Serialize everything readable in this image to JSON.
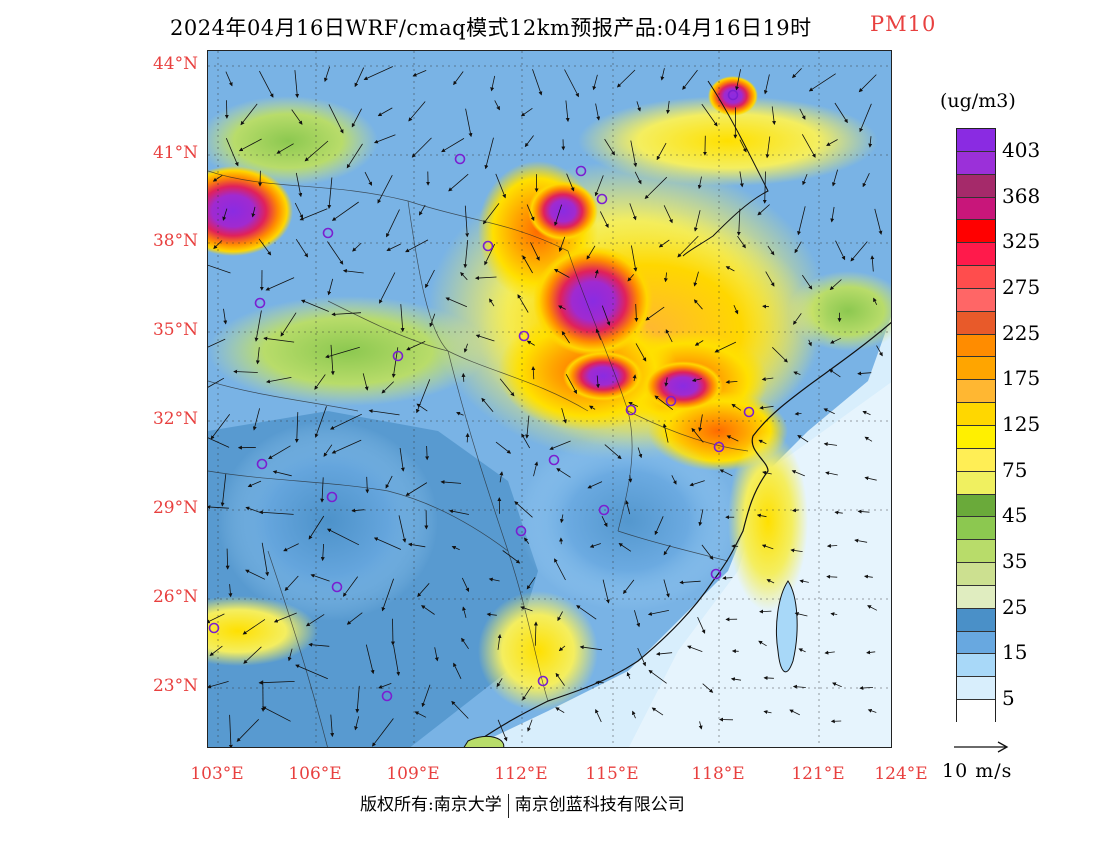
{
  "title": {
    "main": "2024年04月16日WRF/cmaq模式12km预报产品:04月16日19时",
    "variable": "PM10"
  },
  "colors": {
    "label_red": "#e8403f",
    "frame": "#222222"
  },
  "axes": {
    "lat_labels": [
      "44°N",
      "41°N",
      "38°N",
      "35°N",
      "32°N",
      "29°N",
      "26°N",
      "23°N"
    ],
    "lon_labels": [
      "103°E",
      "106°E",
      "109°E",
      "112°E",
      "115°E",
      "118°E",
      "121°E",
      "124°E"
    ]
  },
  "legend": {
    "units": "(ug/m3)",
    "labels": [
      "403",
      "368",
      "325",
      "275",
      "225",
      "175",
      "125",
      "75",
      "45",
      "35",
      "25",
      "15",
      "5"
    ],
    "colors": [
      "#8a2be2",
      "#9b30d9",
      "#a52a6a",
      "#c8167a",
      "#ff0000",
      "#ff1a4b",
      "#ff4d4d",
      "#ff6666",
      "#e85a2a",
      "#ff8c00",
      "#ffa500",
      "#ffb732",
      "#ffd700",
      "#fff000",
      "#ffee55",
      "#f0f060",
      "#6aaa3a",
      "#8cc850",
      "#b8dc6a",
      "#cce090",
      "#e0edc0",
      "#4a90c8",
      "#68a8e0",
      "#a8d8f8",
      "#d8eefc",
      "#ffffff"
    ]
  },
  "vector_legend": {
    "label": "10 m/s"
  },
  "footer": {
    "left": "版权所有:南京大学",
    "right": "南京创蓝科技有限公司"
  },
  "map": {
    "stations": 22,
    "field": "PM10 concentration with 10m wind vectors over China"
  }
}
